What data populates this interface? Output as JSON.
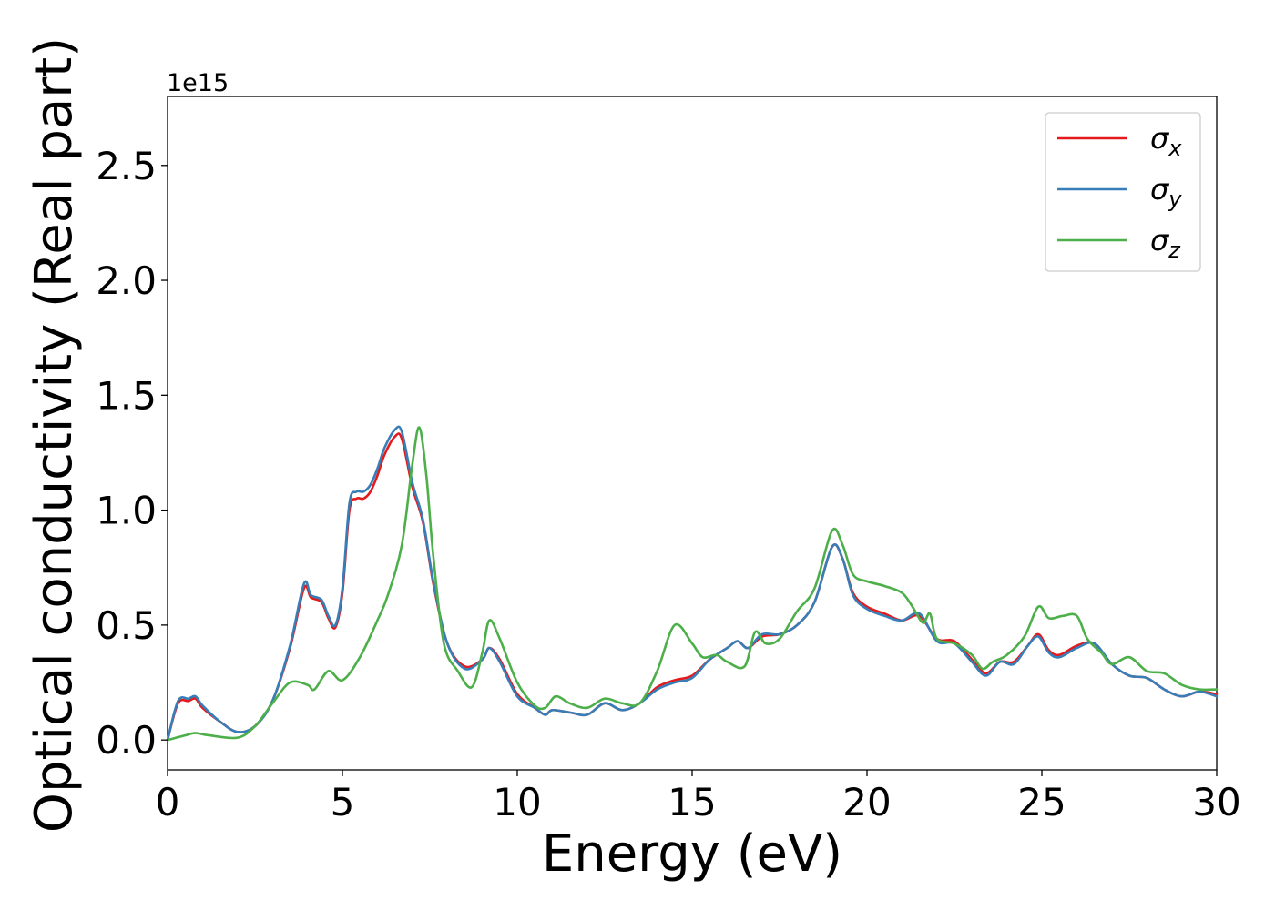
{
  "chart_data": {
    "type": "line",
    "title": "",
    "xlabel": "Energy (eV)",
    "ylabel": "Optical conductivity (Real part)",
    "y_offset_label": "1e15",
    "xlim": [
      0,
      30
    ],
    "ylim": [
      -0.13,
      2.8
    ],
    "xticks": [
      0,
      5,
      10,
      15,
      20,
      25,
      30
    ],
    "xtick_labels": [
      "0",
      "5",
      "10",
      "15",
      "20",
      "25",
      "30"
    ],
    "yticks": [
      0.0,
      0.5,
      1.0,
      1.5,
      2.0,
      2.5
    ],
    "ytick_labels": [
      "0.0",
      "0.5",
      "1.0",
      "1.5",
      "2.0",
      "2.5"
    ],
    "grid": false,
    "legend_position": "top-right",
    "series": [
      {
        "name": "σx",
        "legend_base": "σ",
        "legend_sub": "x",
        "color": "#e41a1c",
        "x": [
          0,
          0.3,
          0.6,
          0.8,
          1.0,
          1.5,
          2.0,
          2.5,
          3.0,
          3.5,
          3.9,
          4.1,
          4.4,
          4.6,
          4.8,
          5.0,
          5.2,
          5.4,
          5.6,
          5.8,
          6.0,
          6.2,
          6.5,
          6.7,
          7.0,
          7.3,
          7.6,
          8.0,
          8.5,
          9.0,
          9.2,
          9.5,
          10.0,
          10.5,
          10.8,
          11.0,
          11.5,
          12.0,
          12.5,
          13.0,
          13.5,
          14.0,
          14.5,
          15.0,
          15.5,
          16.0,
          16.3,
          16.6,
          17.0,
          17.5,
          18.0,
          18.5,
          19.0,
          19.3,
          19.6,
          20.0,
          20.5,
          21.0,
          21.5,
          22.0,
          22.5,
          23.0,
          23.4,
          23.8,
          24.2,
          24.6,
          24.9,
          25.2,
          25.5,
          26.0,
          26.5,
          27.0,
          27.5,
          28.0,
          28.5,
          29.0,
          29.5,
          30.0
        ],
        "y": [
          0,
          0.16,
          0.17,
          0.18,
          0.14,
          0.08,
          0.035,
          0.06,
          0.17,
          0.4,
          0.66,
          0.62,
          0.6,
          0.53,
          0.49,
          0.64,
          1.0,
          1.05,
          1.05,
          1.08,
          1.15,
          1.24,
          1.32,
          1.31,
          1.1,
          0.95,
          0.68,
          0.42,
          0.32,
          0.35,
          0.4,
          0.35,
          0.2,
          0.14,
          0.11,
          0.13,
          0.12,
          0.11,
          0.16,
          0.13,
          0.16,
          0.23,
          0.26,
          0.28,
          0.35,
          0.4,
          0.43,
          0.4,
          0.45,
          0.46,
          0.5,
          0.6,
          0.84,
          0.79,
          0.64,
          0.58,
          0.55,
          0.52,
          0.54,
          0.44,
          0.43,
          0.35,
          0.29,
          0.34,
          0.34,
          0.41,
          0.46,
          0.39,
          0.37,
          0.41,
          0.42,
          0.33,
          0.28,
          0.27,
          0.22,
          0.19,
          0.21,
          0.2
        ]
      },
      {
        "name": "σy",
        "legend_base": "σ",
        "legend_sub": "y",
        "color": "#377eb8",
        "x": [
          0,
          0.3,
          0.6,
          0.8,
          1.0,
          1.5,
          2.0,
          2.5,
          3.0,
          3.5,
          3.9,
          4.1,
          4.4,
          4.6,
          4.8,
          5.0,
          5.2,
          5.4,
          5.6,
          5.8,
          6.0,
          6.2,
          6.5,
          6.7,
          7.0,
          7.3,
          7.6,
          8.0,
          8.5,
          9.0,
          9.2,
          9.5,
          10.0,
          10.5,
          10.8,
          11.0,
          11.5,
          12.0,
          12.5,
          13.0,
          13.5,
          14.0,
          14.5,
          15.0,
          15.5,
          16.0,
          16.3,
          16.6,
          17.0,
          17.5,
          18.0,
          18.5,
          19.0,
          19.3,
          19.6,
          20.0,
          20.5,
          21.0,
          21.5,
          22.0,
          22.5,
          23.0,
          23.4,
          23.8,
          24.2,
          24.6,
          24.9,
          25.2,
          25.5,
          26.0,
          26.5,
          27.0,
          27.5,
          28.0,
          28.5,
          29.0,
          29.5,
          30.0
        ],
        "y": [
          0,
          0.17,
          0.18,
          0.19,
          0.15,
          0.08,
          0.035,
          0.06,
          0.17,
          0.41,
          0.68,
          0.63,
          0.61,
          0.54,
          0.5,
          0.66,
          1.03,
          1.08,
          1.08,
          1.11,
          1.18,
          1.27,
          1.35,
          1.34,
          1.12,
          0.96,
          0.69,
          0.42,
          0.31,
          0.35,
          0.4,
          0.34,
          0.19,
          0.14,
          0.11,
          0.13,
          0.12,
          0.11,
          0.16,
          0.13,
          0.16,
          0.22,
          0.25,
          0.27,
          0.35,
          0.4,
          0.43,
          0.4,
          0.46,
          0.46,
          0.5,
          0.6,
          0.84,
          0.79,
          0.63,
          0.57,
          0.54,
          0.52,
          0.55,
          0.43,
          0.42,
          0.34,
          0.28,
          0.34,
          0.33,
          0.41,
          0.45,
          0.38,
          0.36,
          0.4,
          0.42,
          0.33,
          0.28,
          0.27,
          0.22,
          0.19,
          0.21,
          0.19
        ]
      },
      {
        "name": "σz",
        "legend_base": "σ",
        "legend_sub": "z",
        "color": "#4daf4a",
        "x": [
          0,
          0.5,
          0.8,
          1.2,
          2.0,
          2.5,
          3.0,
          3.5,
          4.0,
          4.2,
          4.6,
          5.0,
          5.5,
          6.0,
          6.3,
          6.7,
          7.0,
          7.2,
          7.4,
          7.6,
          7.9,
          8.3,
          8.7,
          9.0,
          9.2,
          9.5,
          10.0,
          10.5,
          10.8,
          11.1,
          11.5,
          12.0,
          12.5,
          13.0,
          13.5,
          14.0,
          14.5,
          15.0,
          15.3,
          15.7,
          16.0,
          16.5,
          16.8,
          17.1,
          17.5,
          18.0,
          18.5,
          19.0,
          19.3,
          19.6,
          20.0,
          20.5,
          21.0,
          21.3,
          21.6,
          21.8,
          22.0,
          22.5,
          23.0,
          23.3,
          23.6,
          24.0,
          24.5,
          24.9,
          25.2,
          25.6,
          26.0,
          26.3,
          26.7,
          27.0,
          27.5,
          28.0,
          28.5,
          29.0,
          29.5,
          30.0
        ],
        "y": [
          0,
          0.02,
          0.03,
          0.02,
          0.01,
          0.06,
          0.16,
          0.25,
          0.24,
          0.22,
          0.3,
          0.26,
          0.36,
          0.52,
          0.63,
          0.85,
          1.2,
          1.36,
          1.15,
          0.8,
          0.42,
          0.3,
          0.23,
          0.38,
          0.52,
          0.44,
          0.25,
          0.15,
          0.14,
          0.19,
          0.16,
          0.14,
          0.18,
          0.16,
          0.16,
          0.3,
          0.5,
          0.42,
          0.36,
          0.37,
          0.34,
          0.32,
          0.47,
          0.42,
          0.44,
          0.56,
          0.66,
          0.91,
          0.85,
          0.72,
          0.69,
          0.67,
          0.64,
          0.58,
          0.51,
          0.55,
          0.44,
          0.42,
          0.37,
          0.31,
          0.34,
          0.37,
          0.45,
          0.58,
          0.53,
          0.54,
          0.54,
          0.44,
          0.38,
          0.33,
          0.36,
          0.3,
          0.29,
          0.24,
          0.22,
          0.22
        ]
      }
    ]
  }
}
